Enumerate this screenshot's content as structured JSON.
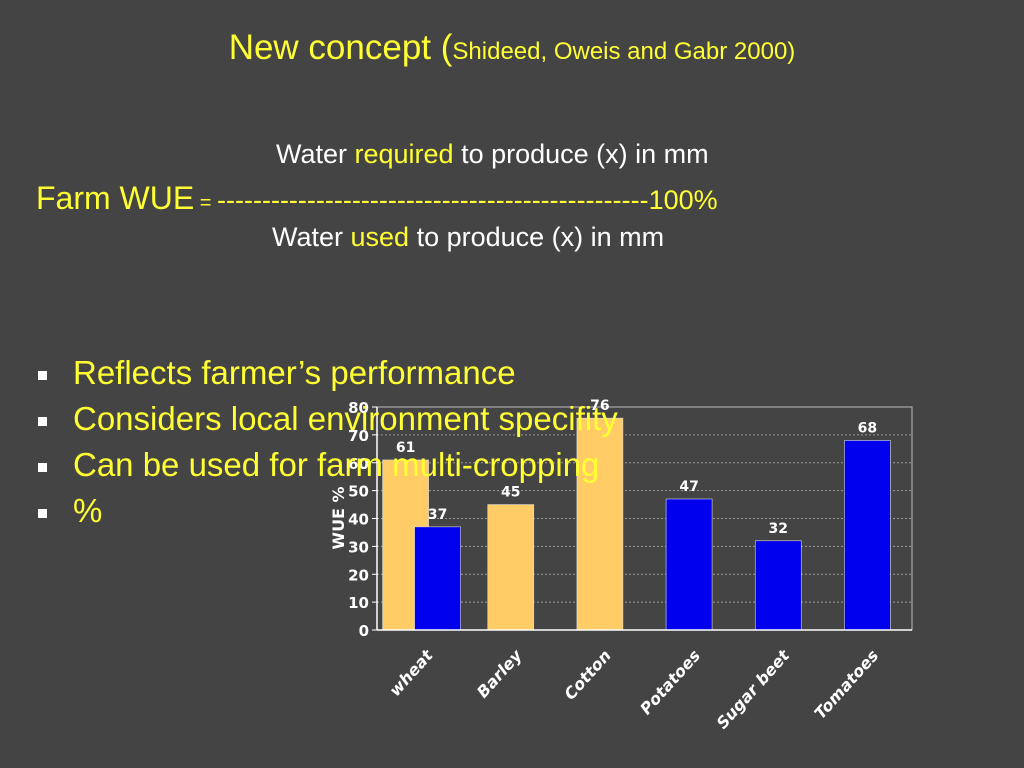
{
  "title": {
    "main": "New concept (",
    "cite": "Shideed, Oweis and Gabr 2000)"
  },
  "formula": {
    "top_pre": "Water ",
    "top_hl": "required",
    "top_post": " to produce (x) in mm",
    "mid_left": "Farm WUE",
    "mid_eq": " = ",
    "mid_dashes": "------------------------------------------------100%",
    "bottom_pre": "Water ",
    "bottom_hl": "used",
    "bottom_post": " to produce (x) in mm"
  },
  "bullets": [
    "Reflects farmer’s performance",
    "Considers local environment specifity",
    "Can be used for farm multi-cropping",
    "%"
  ],
  "colors": {
    "accent": "#ffff33",
    "bar_orange": "#ffcc66",
    "bar_blue": "#0000ee",
    "background": "#444444"
  },
  "chart_data": {
    "type": "bar",
    "ylabel": "WUE %",
    "ylim": [
      0,
      80
    ],
    "yticks": [
      0,
      10,
      20,
      30,
      40,
      50,
      60,
      70,
      80
    ],
    "grid": true,
    "categories": [
      "wheat",
      "Barley",
      "Cotton",
      "Potatoes",
      "Sugar beet",
      "Tomatoes"
    ],
    "series": [
      {
        "color": "#ffcc66",
        "values": [
          61,
          45,
          76,
          null,
          null,
          null
        ]
      },
      {
        "color": "#0000ee",
        "values": [
          37,
          null,
          null,
          47,
          32,
          68
        ]
      }
    ]
  }
}
